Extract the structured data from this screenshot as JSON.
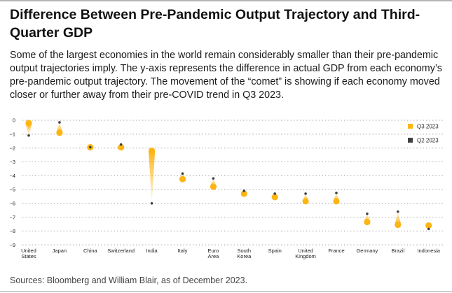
{
  "title": "Difference Between Pre-Pandemic Output Trajectory and Third-Quarter GDP",
  "subtitle": "Some of the largest economies in the world remain considerably smaller than their pre-pandemic output trajectories imply. The y-axis represents the difference in actual GDP from each economy’s pre-pandemic output trajectory. The movement of the “comet” is showing if each economy moved closer or further away from their pre-COVID trend in Q3 2023.",
  "source": "Sources: Bloomberg and William Blair, as of December 2023.",
  "colors": {
    "q3": "#FDB515",
    "q2": "#404040",
    "grid": "#b0b0b0"
  },
  "chart_data": {
    "type": "scatter",
    "subtype": "comet",
    "ylim": [
      -9,
      0
    ],
    "yticks": [
      "0",
      "−1",
      "−2",
      "−3",
      "−4",
      "−5",
      "−6",
      "−7",
      "−8",
      "−9"
    ],
    "grid": "horizontal dotted",
    "legend_placement": "top-right",
    "categories": [
      [
        "United",
        "States"
      ],
      [
        "Japan"
      ],
      [
        "China"
      ],
      [
        "Switzerland"
      ],
      [
        "India"
      ],
      [
        "Italy"
      ],
      [
        "Euro",
        "Area"
      ],
      [
        "South",
        "Korea"
      ],
      [
        "Spain"
      ],
      [
        "United",
        "Kingdom"
      ],
      [
        "France"
      ],
      [
        "Germany"
      ],
      [
        "Brazil"
      ],
      [
        "Indonesia"
      ]
    ],
    "series": [
      {
        "name": "Q3 2023",
        "values": [
          -0.2,
          -0.9,
          -1.95,
          -1.95,
          -2.2,
          -4.25,
          -4.8,
          -5.3,
          -5.55,
          -5.85,
          -5.85,
          -7.35,
          -7.55,
          -7.6
        ]
      },
      {
        "name": "Q2 2023",
        "values": [
          -1.1,
          -0.15,
          -1.95,
          -1.75,
          -6.0,
          -3.85,
          -4.2,
          -5.1,
          -5.3,
          -5.3,
          -5.25,
          -6.75,
          -6.6,
          -7.85
        ]
      }
    ]
  }
}
